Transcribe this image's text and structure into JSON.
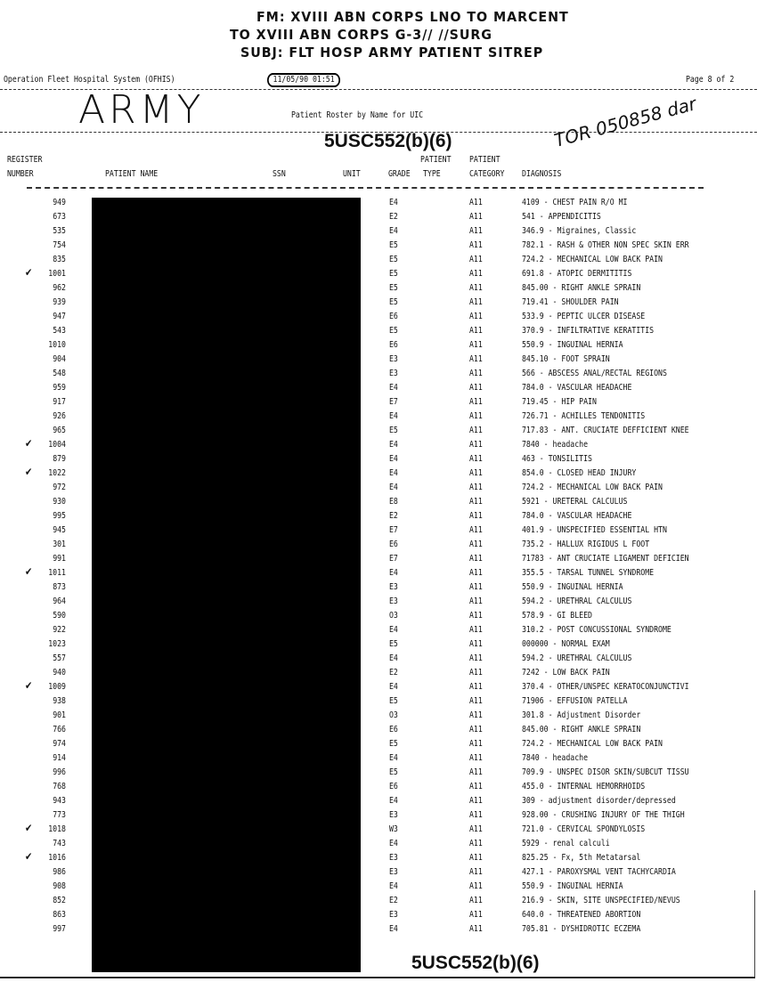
{
  "handwritten_header": {
    "from": "FM: XVIII ABN CORPS LNO TO MARCENT",
    "to": "TO XVIII ABN CORPS G-3// //SURG",
    "subject": "SUBJ: FLT HOSP ARMY PATIENT SITREP",
    "army_label": "ARMY",
    "annotation": "TOR 050858 dar"
  },
  "report": {
    "system": "Operation Fleet Hospital System (OFHIS)",
    "datetime": "11/05/90 01:51",
    "page": "Page 8 of 2",
    "title": "Patient Roster by Name for UIC",
    "exemption_top": "5USC552(b)(6)",
    "exemption_bottom": "5USC552(b)(6)"
  },
  "columns": {
    "register_1": "REGISTER",
    "register_2": "NUMBER",
    "name": "PATIENT NAME",
    "ssn": "SSN",
    "unit": "UNIT",
    "grade": "GRADE",
    "type_1": "PATIENT",
    "type_2": "TYPE",
    "category_1": "PATIENT",
    "category_2": "CATEGORY",
    "diagnosis": "DIAGNOSIS"
  },
  "rows": [
    {
      "reg": "949",
      "check": "",
      "grade": "E4",
      "cat": "A11",
      "dx": "4109 - CHEST PAIN R/O MI"
    },
    {
      "reg": "673",
      "check": "",
      "grade": "E2",
      "cat": "A11",
      "dx": "541 - APPENDICITIS"
    },
    {
      "reg": "535",
      "check": "",
      "grade": "E4",
      "cat": "A11",
      "dx": "346.9 - Migraines, Classic"
    },
    {
      "reg": "754",
      "check": "",
      "grade": "E5",
      "cat": "A11",
      "dx": "782.1 - RASH & OTHER NON SPEC SKIN ERR"
    },
    {
      "reg": "835",
      "check": "",
      "grade": "E5",
      "cat": "A11",
      "dx": "724.2 - MECHANICAL LOW BACK PAIN"
    },
    {
      "reg": "1001",
      "check": "✔",
      "grade": "E5",
      "cat": "A11",
      "dx": "691.8 - ATOPIC DERMITITIS"
    },
    {
      "reg": "962",
      "check": "",
      "grade": "E5",
      "cat": "A11",
      "dx": "845.00 - RIGHT ANKLE SPRAIN"
    },
    {
      "reg": "939",
      "check": "",
      "grade": "E5",
      "cat": "A11",
      "dx": "719.41 - SHOULDER PAIN"
    },
    {
      "reg": "947",
      "check": "",
      "grade": "E6",
      "cat": "A11",
      "dx": "533.9 - PEPTIC ULCER DISEASE"
    },
    {
      "reg": "543",
      "check": "",
      "grade": "E5",
      "cat": "A11",
      "dx": "370.9 - INFILTRATIVE KERATITIS"
    },
    {
      "reg": "1010",
      "check": "",
      "grade": "E6",
      "cat": "A11",
      "dx": "550.9 - INGUINAL HERNIA"
    },
    {
      "reg": "904",
      "check": "",
      "grade": "E3",
      "cat": "A11",
      "dx": "845.10 - FOOT SPRAIN"
    },
    {
      "reg": "548",
      "check": "",
      "grade": "E3",
      "cat": "A11",
      "dx": "566 - ABSCESS ANAL/RECTAL REGIONS"
    },
    {
      "reg": "959",
      "check": "",
      "grade": "E4",
      "cat": "A11",
      "dx": "784.0 - VASCULAR HEADACHE"
    },
    {
      "reg": "917",
      "check": "",
      "grade": "E7",
      "cat": "A11",
      "dx": "719.45 - HIP PAIN"
    },
    {
      "reg": "926",
      "check": "",
      "grade": "E4",
      "cat": "A11",
      "dx": "726.71 - ACHILLES TENDONITIS"
    },
    {
      "reg": "965",
      "check": "",
      "grade": "E5",
      "cat": "A11",
      "dx": "717.83 - ANT. CRUCIATE DEFFICIENT KNEE"
    },
    {
      "reg": "1004",
      "check": "✔",
      "grade": "E4",
      "cat": "A11",
      "dx": "7840 - headache"
    },
    {
      "reg": "879",
      "check": "",
      "grade": "E4",
      "cat": "A11",
      "dx": "463 - TONSILITIS"
    },
    {
      "reg": "1022",
      "check": "✔",
      "grade": "E4",
      "cat": "A11",
      "dx": "854.0 - CLOSED HEAD INJURY"
    },
    {
      "reg": "972",
      "check": "",
      "grade": "E4",
      "cat": "A11",
      "dx": "724.2 - MECHANICAL LOW BACK PAIN"
    },
    {
      "reg": "930",
      "check": "",
      "grade": "E8",
      "cat": "A11",
      "dx": "5921 - URETERAL CALCULUS"
    },
    {
      "reg": "995",
      "check": "",
      "grade": "E2",
      "cat": "A11",
      "dx": "784.0 - VASCULAR HEADACHE"
    },
    {
      "reg": "945",
      "check": "",
      "grade": "E7",
      "cat": "A11",
      "dx": "401.9 - UNSPECIFIED ESSENTIAL HTN"
    },
    {
      "reg": "301",
      "check": "",
      "grade": "E6",
      "cat": "A11",
      "dx": "735.2 - HALLUX RIGIDUS L FOOT"
    },
    {
      "reg": "991",
      "check": "",
      "grade": "E7",
      "cat": "A11",
      "dx": "71783 - ANT CRUCIATE LIGAMENT DEFICIEN"
    },
    {
      "reg": "1011",
      "check": "✔",
      "grade": "E4",
      "cat": "A11",
      "dx": "355.5 - TARSAL TUNNEL SYNDROME"
    },
    {
      "reg": "873",
      "check": "",
      "grade": "E3",
      "cat": "A11",
      "dx": "550.9 - INGUINAL HERNIA"
    },
    {
      "reg": "964",
      "check": "",
      "grade": "E3",
      "cat": "A11",
      "dx": "594.2 - URETHRAL CALCULUS"
    },
    {
      "reg": "590",
      "check": "",
      "grade": "O3",
      "cat": "A11",
      "dx": "578.9 - GI BLEED"
    },
    {
      "reg": "922",
      "check": "",
      "grade": "E4",
      "cat": "A11",
      "dx": "310.2 - POST CONCUSSIONAL SYNDROME"
    },
    {
      "reg": "1023",
      "check": "",
      "grade": "E5",
      "cat": "A11",
      "dx": "000000 - NORMAL EXAM"
    },
    {
      "reg": "557",
      "check": "",
      "grade": "E4",
      "cat": "A11",
      "dx": "594.2 - URETHRAL CALCULUS"
    },
    {
      "reg": "940",
      "check": "",
      "grade": "E2",
      "cat": "A11",
      "dx": "7242 - LOW BACK PAIN"
    },
    {
      "reg": "1009",
      "check": "✔",
      "grade": "E4",
      "cat": "A11",
      "dx": "370.4 - OTHER/UNSPEC KERATOCONJUNCTIVI"
    },
    {
      "reg": "938",
      "check": "",
      "grade": "E5",
      "cat": "A11",
      "dx": "71906 - EFFUSION PATELLA"
    },
    {
      "reg": "901",
      "check": "",
      "grade": "O3",
      "cat": "A11",
      "dx": "301.8 - Adjustment Disorder"
    },
    {
      "reg": "766",
      "check": "",
      "grade": "E6",
      "cat": "A11",
      "dx": "845.00 - RIGHT ANKLE SPRAIN"
    },
    {
      "reg": "974",
      "check": "",
      "grade": "E5",
      "cat": "A11",
      "dx": "724.2 - MECHANICAL LOW BACK PAIN"
    },
    {
      "reg": "914",
      "check": "",
      "grade": "E4",
      "cat": "A11",
      "dx": "7840 - headache"
    },
    {
      "reg": "996",
      "check": "",
      "grade": "E5",
      "cat": "A11",
      "dx": "709.9 - UNSPEC DISOR SKIN/SUBCUT TISSU"
    },
    {
      "reg": "768",
      "check": "",
      "grade": "E6",
      "cat": "A11",
      "dx": "455.0 - INTERNAL HEMORRHOIDS"
    },
    {
      "reg": "943",
      "check": "",
      "grade": "E4",
      "cat": "A11",
      "dx": "309 - adjustment disorder/depressed"
    },
    {
      "reg": "773",
      "check": "",
      "grade": "E3",
      "cat": "A11",
      "dx": "928.00 - CRUSHING INJURY OF THE THIGH"
    },
    {
      "reg": "1018",
      "check": "✔",
      "grade": "W3",
      "cat": "A11",
      "dx": "721.0 - CERVICAL SPONDYLOSIS"
    },
    {
      "reg": "743",
      "check": "",
      "grade": "E4",
      "cat": "A11",
      "dx": "5929 - renal calculi"
    },
    {
      "reg": "1016",
      "check": "✔",
      "grade": "E3",
      "cat": "A11",
      "dx": "825.25 - Fx, 5th Metatarsal"
    },
    {
      "reg": "986",
      "check": "",
      "grade": "E3",
      "cat": "A11",
      "dx": "427.1 - PAROXYSMAL VENT TACHYCARDIA"
    },
    {
      "reg": "908",
      "check": "",
      "grade": "E4",
      "cat": "A11",
      "dx": "550.9 - INGUINAL HERNIA"
    },
    {
      "reg": "852",
      "check": "",
      "grade": "E2",
      "cat": "A11",
      "dx": "216.9 - SKIN, SITE UNSPECIFIED/NEVUS"
    },
    {
      "reg": "863",
      "check": "",
      "grade": "E3",
      "cat": "A11",
      "dx": "640.0 - THREATENED ABORTION"
    },
    {
      "reg": "997",
      "check": "",
      "grade": "E4",
      "cat": "A11",
      "dx": "705.81 - DYSHIDROTIC ECZEMA"
    }
  ]
}
